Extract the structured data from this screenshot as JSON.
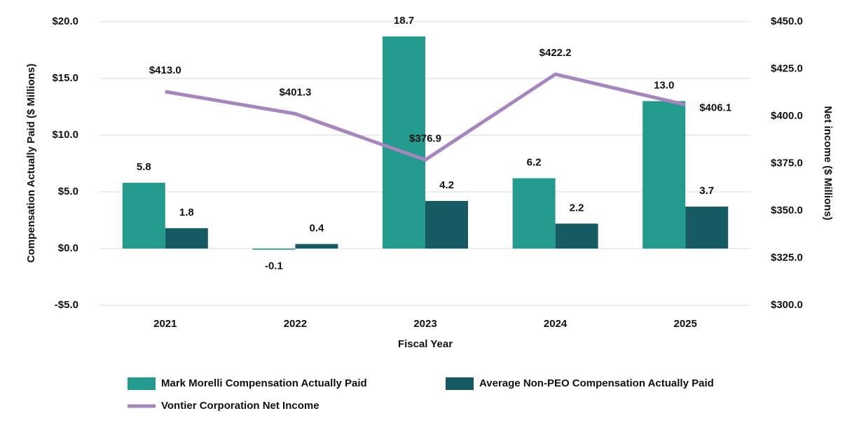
{
  "chart_data": {
    "type": "bar",
    "categories": [
      "2021",
      "2022",
      "2023",
      "2024",
      "2025"
    ],
    "xlabel": "Fiscal Year",
    "ylabel": "Compensation Actually Paid ($ Millions)",
    "y2label": "Net income ($ Millions)",
    "ylim": [
      -5,
      20
    ],
    "yticks": [
      {
        "value": -5,
        "label": "-$5.0"
      },
      {
        "value": 0,
        "label": "$0.0"
      },
      {
        "value": 5,
        "label": "$5.0"
      },
      {
        "value": 10,
        "label": "$10.0"
      },
      {
        "value": 15,
        "label": "$15.0"
      },
      {
        "value": 20,
        "label": "$20.0"
      }
    ],
    "y2lim": [
      300,
      450
    ],
    "y2ticks": [
      {
        "value": 300,
        "label": "$300.0"
      },
      {
        "value": 325,
        "label": "$325.0"
      },
      {
        "value": 350,
        "label": "$350.0"
      },
      {
        "value": 375,
        "label": "$375.0"
      },
      {
        "value": 400,
        "label": "$400.0"
      },
      {
        "value": 425,
        "label": "$425.0"
      },
      {
        "value": 450,
        "label": "$450.0"
      }
    ],
    "grid": true,
    "series": [
      {
        "name": "Mark Morelli Compensation Actually Paid",
        "type": "bar",
        "color": "#239b8d",
        "values": [
          5.8,
          -0.1,
          18.7,
          6.2,
          13.0
        ],
        "value_labels": [
          "5.8",
          "-0.1",
          "18.7",
          "6.2",
          "13.0"
        ]
      },
      {
        "name": "Average Non-PEO Compensation Actually Paid",
        "type": "bar",
        "color": "#165b63",
        "values": [
          1.8,
          0.4,
          4.2,
          2.2,
          3.7
        ],
        "value_labels": [
          "1.8",
          "0.4",
          "4.2",
          "2.2",
          "3.7"
        ]
      },
      {
        "name": "Vontier Corporation Net Income",
        "type": "line",
        "axis": "y2",
        "color": "#a786c0",
        "values": [
          413.0,
          401.3,
          376.9,
          422.2,
          406.1
        ],
        "value_labels": [
          "$413.0",
          "$401.3",
          "$376.9",
          "$422.2",
          "$406.1"
        ]
      }
    ]
  }
}
